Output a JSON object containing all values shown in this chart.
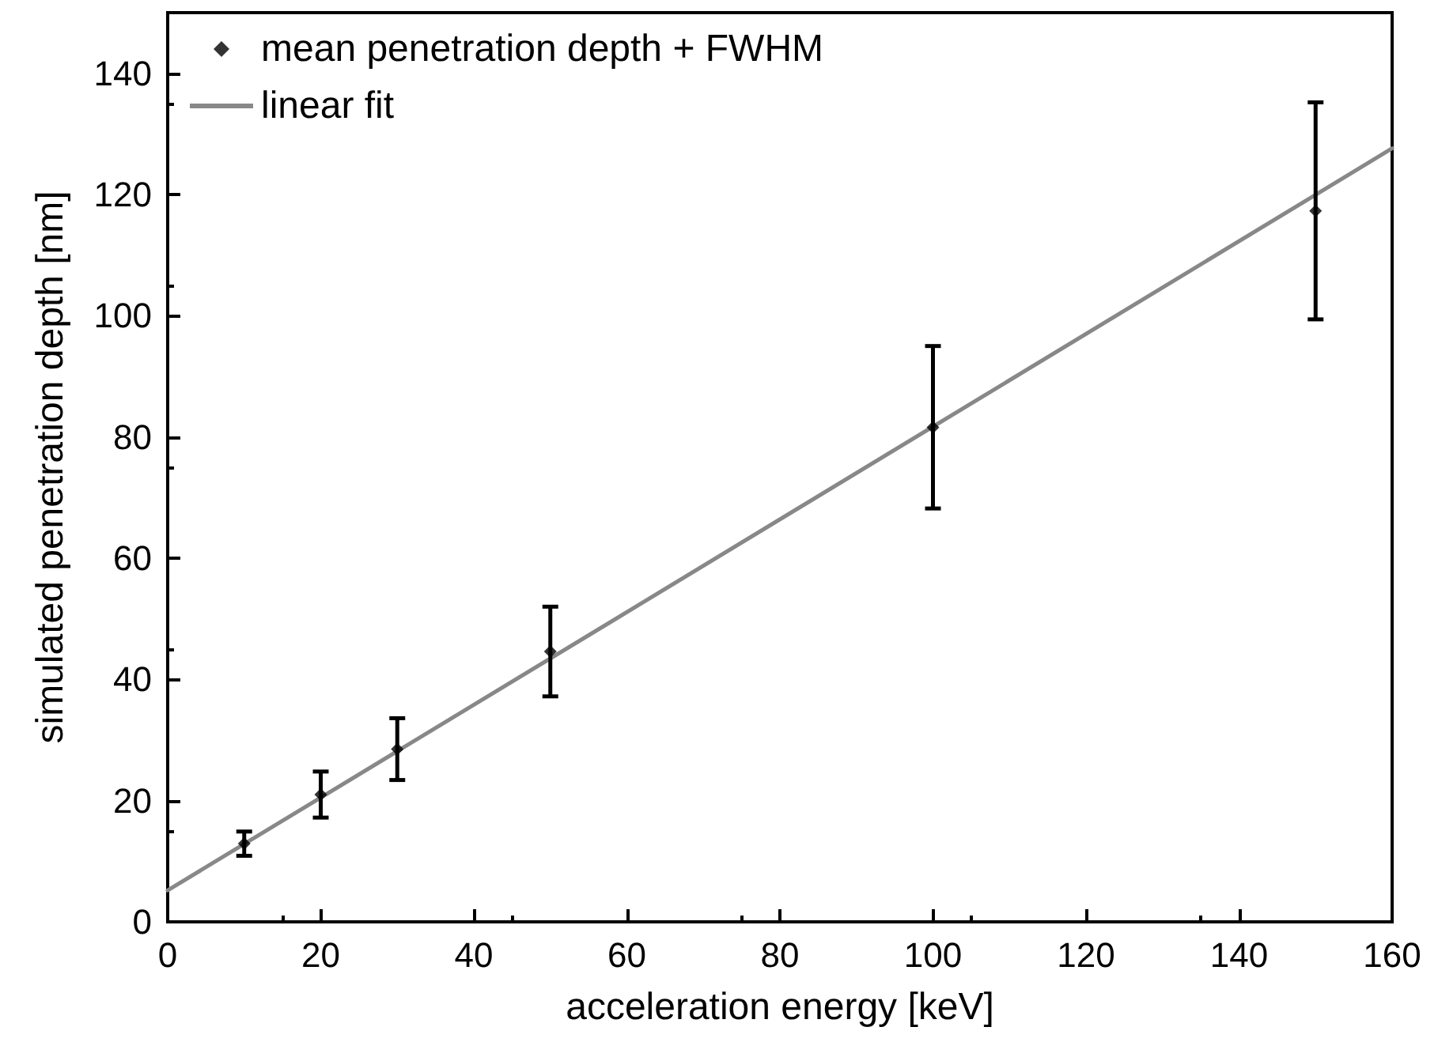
{
  "chart_data": {
    "type": "scatter",
    "xlabel": "acceleration energy [keV]",
    "ylabel": "simulated penetration depth [nm]",
    "xlim": [
      0,
      160
    ],
    "xticks": [
      0,
      20,
      40,
      60,
      80,
      100,
      120,
      140,
      160
    ],
    "ylim": [
      0,
      150
    ],
    "yticks": [
      0,
      20,
      40,
      60,
      80,
      100,
      120,
      140
    ],
    "grid": false,
    "legend": "top left",
    "series": [
      {
        "name": "mean penetration depth + FWHM",
        "color": "#000000",
        "marker": "diamond",
        "x": [
          10,
          20,
          30,
          50,
          100,
          150
        ],
        "values": [
          12.9,
          21,
          28.5,
          44.6,
          81.6,
          117.3
        ],
        "errors": [
          2,
          3.8,
          5.1,
          7.4,
          13.4,
          17.9
        ]
      },
      {
        "name": "linear fit",
        "type": "line",
        "color": "#888888",
        "marker": "none",
        "line_style": "solid",
        "x": [
          0,
          160
        ],
        "values": [
          5.2,
          127.6
        ]
      }
    ]
  }
}
